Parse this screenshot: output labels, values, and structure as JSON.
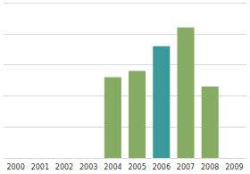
{
  "chart_data": {
    "type": "bar",
    "categories": [
      "2000",
      "2001",
      "2002",
      "2003",
      "2004",
      "2005",
      "2006",
      "2007",
      "2008",
      "2009"
    ],
    "values": [
      null,
      null,
      null,
      null,
      2.6,
      2.8,
      3.6,
      4.2,
      2.3,
      null
    ],
    "colors": [
      "#86ab63",
      "#86ab63",
      "#86ab63",
      "#86ab63",
      "#86ab63",
      "#86ab63",
      "#3a9a9a",
      "#86ab63",
      "#86ab63",
      "#86ab63"
    ],
    "ylim": [
      0,
      5
    ],
    "yticks": [
      0,
      1,
      2,
      3,
      4,
      5
    ],
    "grid": true,
    "tick_labels": "x"
  }
}
